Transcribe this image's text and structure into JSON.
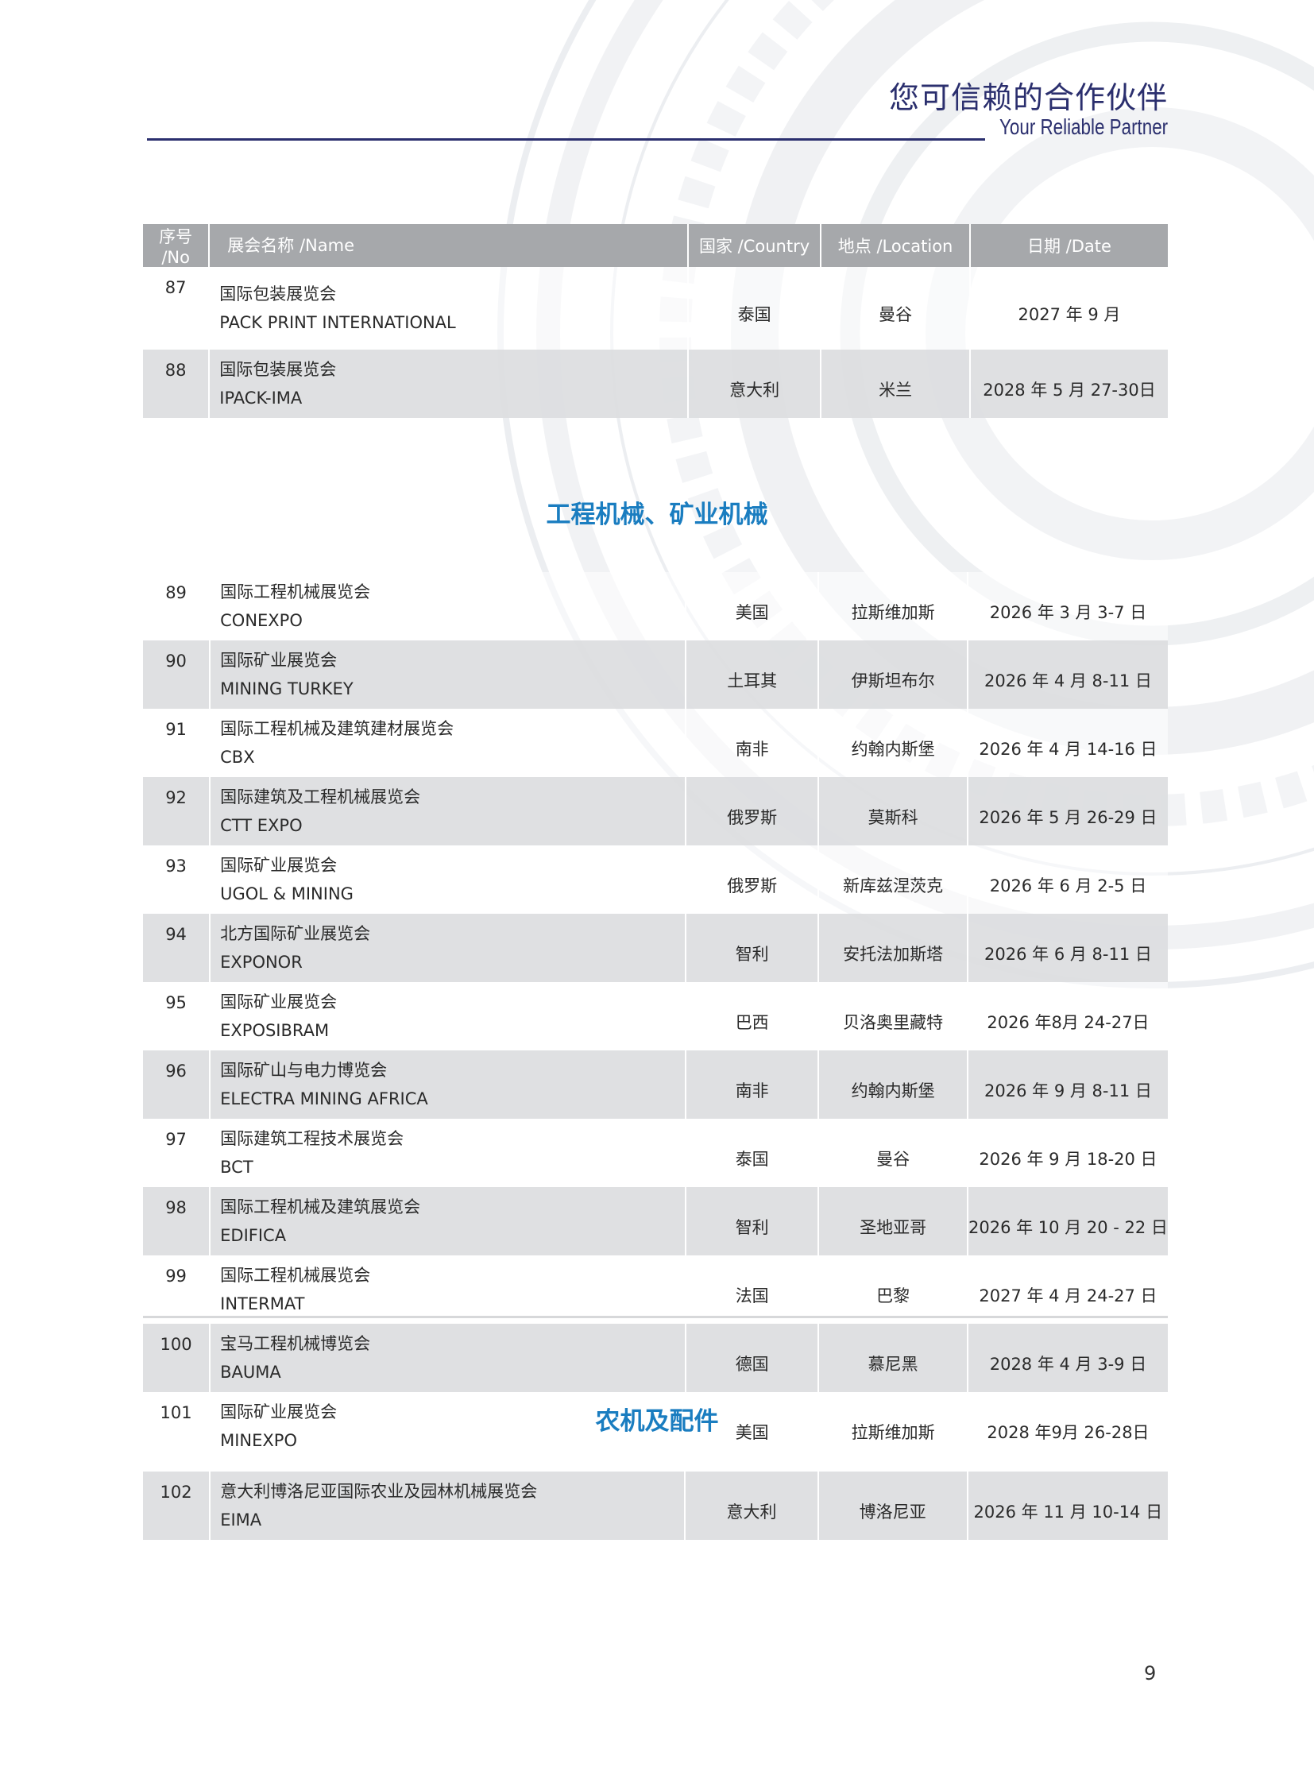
{
  "header": {
    "title_cn": "您可信赖的合作伙伴",
    "title_en": "Your Reliable Partner"
  },
  "table_headers": {
    "no": "序号 /No",
    "name": "展会名称 /Name",
    "country": "国家 /Country",
    "location": "地点 /Location",
    "date": "日期 /Date"
  },
  "table1": [
    {
      "no": "87",
      "name_cn": "国际包装展览会",
      "name_en": "PACK PRINT INTERNATIONAL",
      "country": "泰国",
      "location": "曼谷",
      "date": "2027 年 9 月"
    },
    {
      "no": "88",
      "name_cn": "国际包装展览会",
      "name_en": "IPACK-IMA",
      "country": "意大利",
      "location": "米兰",
      "date": "2028 年 5 月 27-30日"
    }
  ],
  "section1_title": "工程机械、矿业机械",
  "table2": [
    {
      "no": "89",
      "name_cn": "国际工程机械展览会",
      "name_en": "CONEXPO",
      "country": "美国",
      "location": "拉斯维加斯",
      "date": "2026 年 3 月 3-7 日"
    },
    {
      "no": "90",
      "name_cn": "国际矿业展览会",
      "name_en": "MINING TURKEY",
      "country": "土耳其",
      "location": "伊斯坦布尔",
      "date": "2026 年 4 月 8-11 日"
    },
    {
      "no": "91",
      "name_cn": "国际工程机械及建筑建材展览会",
      "name_en": "CBX",
      "country": "南非",
      "location": "约翰内斯堡",
      "date": "2026 年 4 月 14-16 日"
    },
    {
      "no": "92",
      "name_cn": "国际建筑及工程机械展览会",
      "name_en": "CTT EXPO",
      "country": "俄罗斯",
      "location": "莫斯科",
      "date": "2026 年 5 月 26-29 日"
    },
    {
      "no": "93",
      "name_cn": "国际矿业展览会",
      "name_en": "UGOL & MINING",
      "country": "俄罗斯",
      "location": "新库兹涅茨克",
      "date": "2026 年 6 月 2-5 日"
    },
    {
      "no": "94",
      "name_cn": "北方国际矿业展览会",
      "name_en": "EXPONOR",
      "country": "智利",
      "location": "安托法加斯塔",
      "date": "2026 年 6 月 8-11 日"
    },
    {
      "no": "95",
      "name_cn": "国际矿业展览会",
      "name_en": "EXPOSIBRAM",
      "country": "巴西",
      "location": "贝洛奥里藏特",
      "date": "2026 年8月 24-27日"
    },
    {
      "no": "96",
      "name_cn": "国际矿山与电力博览会",
      "name_en": "ELECTRA MINING AFRICA",
      "country": "南非",
      "location": "约翰内斯堡",
      "date": "2026 年 9 月 8-11 日"
    },
    {
      "no": "97",
      "name_cn": "国际建筑工程技术展览会",
      "name_en": "BCT",
      "country": "泰国",
      "location": "曼谷",
      "date": "2026 年 9 月 18-20 日"
    },
    {
      "no": "98",
      "name_cn": "国际工程机械及建筑展览会",
      "name_en": "EDIFICA",
      "country": "智利",
      "location": "圣地亚哥",
      "date": "2026 年 10 月 20 - 22 日"
    },
    {
      "no": "99",
      "name_cn": "国际工程机械展览会",
      "name_en": "INTERMAT",
      "country": "法国",
      "location": "巴黎",
      "date": "2027 年 4 月 24-27 日"
    },
    {
      "no": "100",
      "name_cn": "宝马工程机械博览会",
      "name_en": "BAUMA",
      "country": "德国",
      "location": "慕尼黑",
      "date": "2028 年 4 月 3-9 日"
    },
    {
      "no": "101",
      "name_cn": "国际矿业展览会",
      "name_en": "MINEXPO",
      "country": "美国",
      "location": "拉斯维加斯",
      "date": "2028 年9月 26-28日"
    }
  ],
  "section2_title": "农机及配件",
  "table3": [
    {
      "no": "102",
      "name_cn": "意大利博洛尼亚国际农业及园林机械展览会",
      "name_en": "EIMA",
      "country": "意大利",
      "location": "博洛尼亚",
      "date": "2026 年 11 月 10-14 日"
    }
  ],
  "page_number": "9",
  "colors": {
    "header_navy": "#2b2f6e",
    "section_blue": "#1a7dc0",
    "table_header_gray": "#a6a8ab",
    "row_gray": "#dcdddf"
  }
}
